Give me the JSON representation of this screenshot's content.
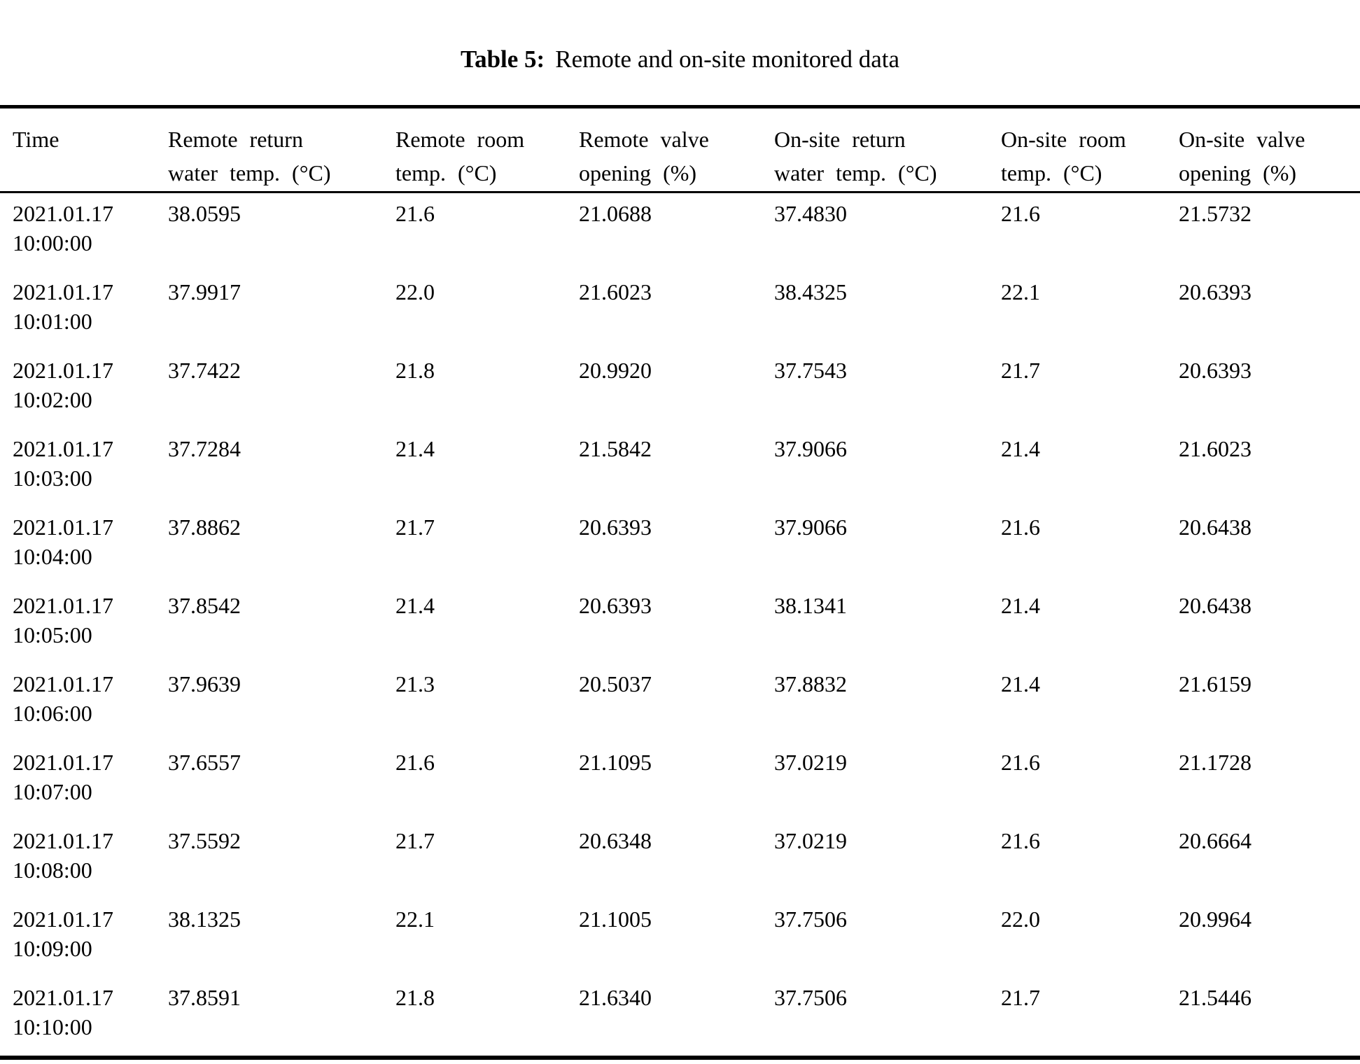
{
  "caption": {
    "label": "Table 5:",
    "text": "Remote and on-site monitored data"
  },
  "table": {
    "columns": [
      {
        "key": "time",
        "lines": [
          "Time"
        ]
      },
      {
        "key": "remote-return-water-temp",
        "lines": [
          "Remote return",
          "water temp. (°C)"
        ]
      },
      {
        "key": "remote-room-temp",
        "lines": [
          "Remote room",
          "temp. (°C)"
        ]
      },
      {
        "key": "remote-valve-opening",
        "lines": [
          "Remote valve",
          "opening (%)"
        ]
      },
      {
        "key": "onsite-return-water-temp",
        "lines": [
          "On-site return",
          "water temp. (°C)"
        ]
      },
      {
        "key": "onsite-room-temp",
        "lines": [
          "On-site room",
          "temp. (°C)"
        ]
      },
      {
        "key": "onsite-valve-opening",
        "lines": [
          "On-site valve",
          "opening (%)"
        ]
      }
    ],
    "rows": [
      {
        "date": "2021.01.17",
        "time": "10:00:00",
        "values": [
          "38.0595",
          "21.6",
          "21.0688",
          "37.4830",
          "21.6",
          "21.5732"
        ]
      },
      {
        "date": "2021.01.17",
        "time": "10:01:00",
        "values": [
          "37.9917",
          "22.0",
          "21.6023",
          "38.4325",
          "22.1",
          "20.6393"
        ]
      },
      {
        "date": "2021.01.17",
        "time": "10:02:00",
        "values": [
          "37.7422",
          "21.8",
          "20.9920",
          "37.7543",
          "21.7",
          "20.6393"
        ]
      },
      {
        "date": "2021.01.17",
        "time": "10:03:00",
        "values": [
          "37.7284",
          "21.4",
          "21.5842",
          "37.9066",
          "21.4",
          "21.6023"
        ]
      },
      {
        "date": "2021.01.17",
        "time": "10:04:00",
        "values": [
          "37.8862",
          "21.7",
          "20.6393",
          "37.9066",
          "21.6",
          "20.6438"
        ]
      },
      {
        "date": "2021.01.17",
        "time": "10:05:00",
        "values": [
          "37.8542",
          "21.4",
          "20.6393",
          "38.1341",
          "21.4",
          "20.6438"
        ]
      },
      {
        "date": "2021.01.17",
        "time": "10:06:00",
        "values": [
          "37.9639",
          "21.3",
          "20.5037",
          "37.8832",
          "21.4",
          "21.6159"
        ]
      },
      {
        "date": "2021.01.17",
        "time": "10:07:00",
        "values": [
          "37.6557",
          "21.6",
          "21.1095",
          "37.0219",
          "21.6",
          "21.1728"
        ]
      },
      {
        "date": "2021.01.17",
        "time": "10:08:00",
        "values": [
          "37.5592",
          "21.7",
          "20.6348",
          "37.0219",
          "21.6",
          "20.6664"
        ]
      },
      {
        "date": "2021.01.17",
        "time": "10:09:00",
        "values": [
          "38.1325",
          "22.1",
          "21.1005",
          "37.7506",
          "22.0",
          "20.9964"
        ]
      },
      {
        "date": "2021.01.17",
        "time": "10:10:00",
        "values": [
          "37.8591",
          "21.8",
          "21.6340",
          "37.7506",
          "21.7",
          "21.5446"
        ]
      }
    ]
  },
  "colors": {
    "text": "#000000",
    "background": "#ffffff",
    "rule": "#000000"
  }
}
